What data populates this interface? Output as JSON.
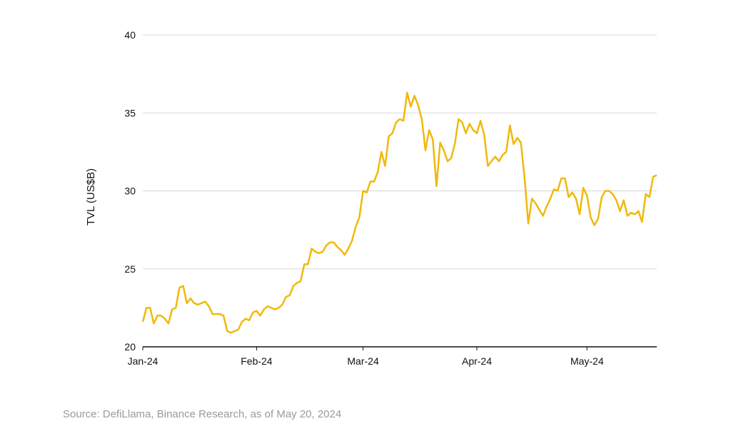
{
  "chart_data": {
    "type": "line",
    "title": "",
    "xlabel": "",
    "ylabel": "TVL (US$B)",
    "ylim": [
      20,
      40
    ],
    "yticks": [
      20,
      25,
      30,
      35,
      40
    ],
    "xlim": [
      "2024-01-01",
      "2024-05-20"
    ],
    "xticks": [
      {
        "label": "Jan-24",
        "date": "2024-01-01"
      },
      {
        "label": "Feb-24",
        "date": "2024-02-01"
      },
      {
        "label": "Mar-24",
        "date": "2024-03-01"
      },
      {
        "label": "Apr-24",
        "date": "2024-04-01"
      },
      {
        "label": "May-24",
        "date": "2024-05-01"
      }
    ],
    "grid": "horizontal",
    "legend": "none",
    "colors": {
      "line": "#F0B90B",
      "grid": "#d9d9d9",
      "axis": "#111111"
    },
    "series": [
      {
        "x": [
          "2024-01-01",
          "2024-01-02",
          "2024-01-03",
          "2024-01-04",
          "2024-01-05",
          "2024-01-06",
          "2024-01-07",
          "2024-01-08",
          "2024-01-09",
          "2024-01-10",
          "2024-01-11",
          "2024-01-12",
          "2024-01-13",
          "2024-01-14",
          "2024-01-15",
          "2024-01-16",
          "2024-01-17",
          "2024-01-18",
          "2024-01-19",
          "2024-01-20",
          "2024-01-21",
          "2024-01-22",
          "2024-01-23",
          "2024-01-24",
          "2024-01-25",
          "2024-01-26",
          "2024-01-27",
          "2024-01-28",
          "2024-01-29",
          "2024-01-30",
          "2024-01-31",
          "2024-02-01",
          "2024-02-02",
          "2024-02-03",
          "2024-02-04",
          "2024-02-05",
          "2024-02-06",
          "2024-02-07",
          "2024-02-08",
          "2024-02-09",
          "2024-02-10",
          "2024-02-11",
          "2024-02-12",
          "2024-02-13",
          "2024-02-14",
          "2024-02-15",
          "2024-02-16",
          "2024-02-17",
          "2024-02-18",
          "2024-02-19",
          "2024-02-20",
          "2024-02-21",
          "2024-02-22",
          "2024-02-23",
          "2024-02-24",
          "2024-02-25",
          "2024-02-26",
          "2024-02-27",
          "2024-02-28",
          "2024-02-29",
          "2024-03-01",
          "2024-03-02",
          "2024-03-03",
          "2024-03-04",
          "2024-03-05",
          "2024-03-06",
          "2024-03-07",
          "2024-03-08",
          "2024-03-09",
          "2024-03-10",
          "2024-03-11",
          "2024-03-12",
          "2024-03-13",
          "2024-03-14",
          "2024-03-15",
          "2024-03-16",
          "2024-03-17",
          "2024-03-18",
          "2024-03-19",
          "2024-03-20",
          "2024-03-21",
          "2024-03-22",
          "2024-03-23",
          "2024-03-24",
          "2024-03-25",
          "2024-03-26",
          "2024-03-27",
          "2024-03-28",
          "2024-03-29",
          "2024-03-30",
          "2024-03-31",
          "2024-04-01",
          "2024-04-02",
          "2024-04-03",
          "2024-04-04",
          "2024-04-05",
          "2024-04-06",
          "2024-04-07",
          "2024-04-08",
          "2024-04-09",
          "2024-04-10",
          "2024-04-11",
          "2024-04-12",
          "2024-04-13",
          "2024-04-14",
          "2024-04-15",
          "2024-04-16",
          "2024-04-17",
          "2024-04-18",
          "2024-04-19",
          "2024-04-20",
          "2024-04-21",
          "2024-04-22",
          "2024-04-23",
          "2024-04-24",
          "2024-04-25",
          "2024-04-26",
          "2024-04-27",
          "2024-04-28",
          "2024-04-29",
          "2024-04-30",
          "2024-05-01",
          "2024-05-02",
          "2024-05-03",
          "2024-05-04",
          "2024-05-05",
          "2024-05-06",
          "2024-05-07",
          "2024-05-08",
          "2024-05-09",
          "2024-05-10",
          "2024-05-11",
          "2024-05-12",
          "2024-05-13",
          "2024-05-14",
          "2024-05-15",
          "2024-05-16",
          "2024-05-17",
          "2024-05-18",
          "2024-05-19",
          "2024-05-20"
        ],
        "y": [
          21.6,
          22.5,
          22.5,
          21.5,
          22.0,
          22.0,
          21.8,
          21.5,
          22.4,
          22.5,
          23.8,
          23.9,
          22.8,
          23.1,
          22.8,
          22.7,
          22.8,
          22.9,
          22.6,
          22.1,
          22.1,
          22.1,
          22.0,
          21.0,
          20.9,
          21.0,
          21.1,
          21.6,
          21.8,
          21.7,
          22.2,
          22.3,
          22.0,
          22.4,
          22.6,
          22.5,
          22.4,
          22.5,
          22.7,
          23.2,
          23.3,
          23.9,
          24.1,
          24.2,
          25.3,
          25.3,
          26.3,
          26.1,
          26.0,
          26.1,
          26.5,
          26.7,
          26.7,
          26.4,
          26.2,
          25.9,
          26.3,
          26.8,
          27.7,
          28.3,
          30.0,
          29.9,
          30.6,
          30.6,
          31.2,
          32.5,
          31.6,
          33.5,
          33.7,
          34.4,
          34.6,
          34.5,
          36.3,
          35.4,
          36.1,
          35.5,
          34.6,
          32.6,
          33.9,
          33.3,
          30.3,
          33.1,
          32.6,
          31.9,
          32.1,
          33.0,
          34.6,
          34.4,
          33.7,
          34.3,
          33.9,
          33.7,
          34.5,
          33.6,
          31.6,
          31.9,
          32.2,
          31.9,
          32.3,
          32.5,
          34.2,
          33.0,
          33.4,
          33.1,
          30.8,
          27.9,
          29.5,
          29.2,
          28.8,
          28.4,
          29.0,
          29.5,
          30.1,
          30.0,
          30.8,
          30.8,
          29.6,
          29.9,
          29.5,
          28.5,
          30.2,
          29.7,
          28.3,
          27.8,
          28.2,
          29.6,
          30.0,
          30.0,
          29.8,
          29.4,
          28.7,
          29.4,
          28.4,
          28.6,
          28.5,
          28.7,
          28.0,
          29.8,
          29.6,
          30.9,
          31.0
        ]
      }
    ]
  },
  "source_note": "Source: DefiLlama, Binance Research, as of May 20, 2024"
}
